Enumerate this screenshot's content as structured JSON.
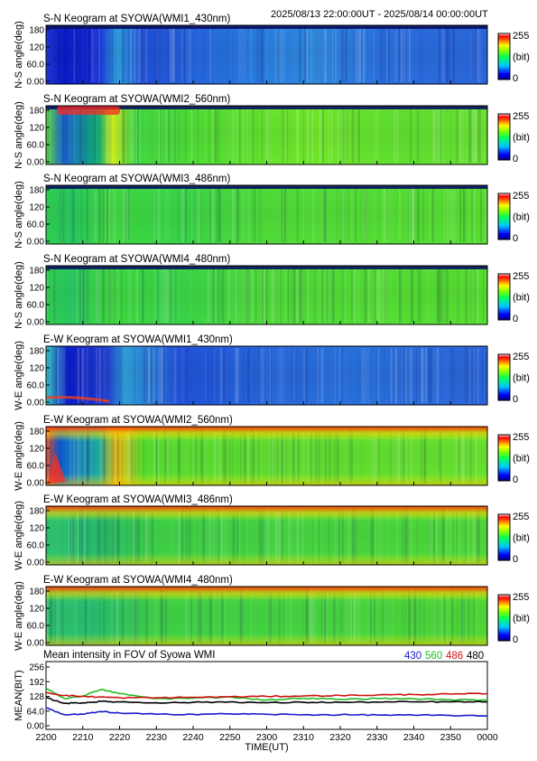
{
  "header": {
    "title": "S-N Keogram at SYOWA(WMI1_430nm)",
    "time_range": "2025/08/13 22:00:00UT - 2025/08/14 00:00:00UT"
  },
  "panels": [
    {
      "title": "S-N Keogram at SYOWA(WMI1_430nm)",
      "ylabel": "N-S angle(deg)",
      "style": "blue"
    },
    {
      "title": "S-N Keogram at SYOWA(WMI2_560nm)",
      "ylabel": "N-S angle(deg)",
      "style": "green560"
    },
    {
      "title": "S-N Keogram at SYOWA(WMI3_486nm)",
      "ylabel": "N-S angle(deg)",
      "style": "green"
    },
    {
      "title": "S-N Keogram at SYOWA(WMI4_480nm)",
      "ylabel": "N-S angle(deg)",
      "style": "green"
    },
    {
      "title": "E-W Keogram at SYOWA(WMI1_430nm)",
      "ylabel": "W-E angle(deg)",
      "style": "blueEW"
    },
    {
      "title": "E-W Keogram at SYOWA(WMI2_560nm)",
      "ylabel": "W-E angle(deg)",
      "style": "green560EW"
    },
    {
      "title": "E-W Keogram at SYOWA(WMI3_486nm)",
      "ylabel": "W-E angle(deg)",
      "style": "greenEW"
    },
    {
      "title": "E-W Keogram at SYOWA(WMI4_480nm)",
      "ylabel": "W-E angle(deg)",
      "style": "greenEW"
    }
  ],
  "panel_yticks": [
    "0.00",
    "60.0",
    "120",
    "180"
  ],
  "colorbar": {
    "max": "255",
    "unit": "(bit)",
    "min": "0"
  },
  "line_panel": {
    "title": "Mean intensity in FOV of Syowa WMI",
    "ylabel": "MEAN(BIT)",
    "yticks": [
      "0.00",
      "64.0",
      "128",
      "192",
      "256"
    ],
    "legend": [
      {
        "label": "430",
        "color": "#1a1acc"
      },
      {
        "label": "560",
        "color": "#22bb22"
      },
      {
        "label": "486",
        "color": "#cc1111"
      },
      {
        "label": "480",
        "color": "#000000"
      }
    ]
  },
  "xaxis": {
    "label": "TIME(UT)",
    "ticks": [
      "2200",
      "2210",
      "2220",
      "2230",
      "2240",
      "2250",
      "2300",
      "2310",
      "2320",
      "2330",
      "2340",
      "2350",
      "0000"
    ]
  },
  "chart_data": {
    "type": "line",
    "title": "Mean intensity in FOV of Syowa WMI",
    "ylabel": "MEAN(BIT)",
    "xlabel": "TIME(UT)",
    "ylim": [
      0,
      256
    ],
    "x": [
      "2200",
      "2205",
      "2210",
      "2215",
      "2220",
      "2230",
      "2240",
      "2250",
      "2300",
      "2310",
      "2320",
      "2330",
      "2340",
      "2350",
      "0000"
    ],
    "series": [
      {
        "name": "430",
        "color": "#1a1acc",
        "values": [
          78,
          48,
          50,
          62,
          55,
          50,
          50,
          52,
          50,
          48,
          48,
          47,
          46,
          45,
          42
        ]
      },
      {
        "name": "560",
        "color": "#22bb22",
        "values": [
          165,
          118,
          130,
          158,
          140,
          118,
          120,
          126,
          112,
          120,
          115,
          119,
          118,
          113,
          112
        ]
      },
      {
        "name": "486",
        "color": "#cc1111",
        "values": [
          145,
          132,
          128,
          125,
          122,
          122,
          124,
          126,
          128,
          130,
          132,
          134,
          136,
          138,
          140
        ]
      },
      {
        "name": "480",
        "color": "#000000",
        "values": [
          122,
          98,
          100,
          106,
          104,
          100,
          102,
          104,
          100,
          102,
          102,
          103,
          104,
          104,
          104
        ]
      }
    ]
  }
}
